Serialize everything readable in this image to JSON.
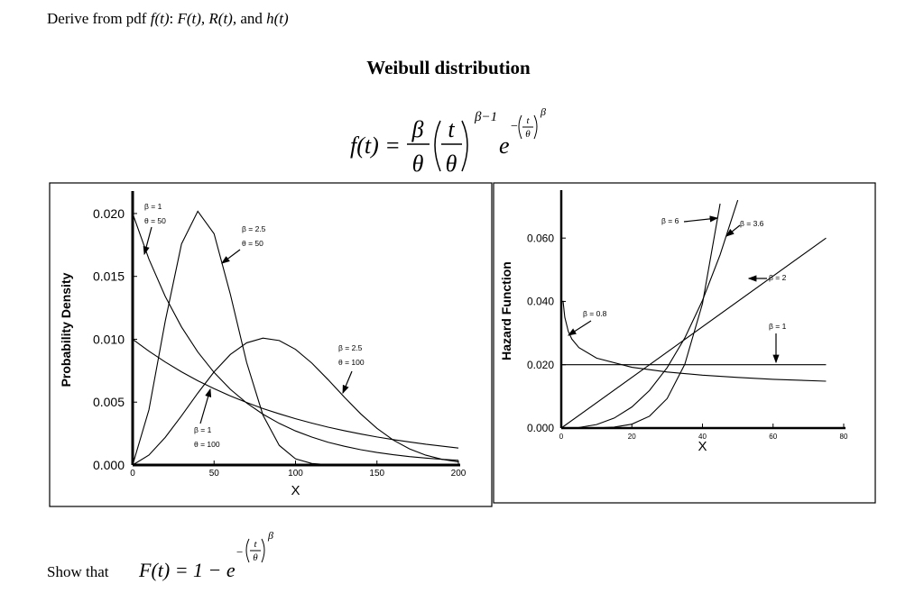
{
  "header": {
    "parts": [
      "Derive from pdf ",
      "f(t)",
      ": ",
      "F(t), R(t),",
      " and ",
      "h(t)"
    ]
  },
  "title": "Weibull distribution",
  "formula": {
    "parts": [
      "f(t) =",
      "β",
      "θ",
      "t",
      "θ",
      "β−1",
      "e",
      "−",
      "t",
      "θ",
      "β"
    ]
  },
  "chart_data": [
    {
      "type": "line",
      "xlabel": "X",
      "ylabel": "Probability Density",
      "xlim": [
        0,
        200
      ],
      "ylim": [
        0,
        0.0215
      ],
      "xticks": [
        0,
        50,
        100,
        150,
        200
      ],
      "yticks": [
        {
          "value": 0,
          "label": "0.000"
        },
        {
          "value": 0.005,
          "label": "0.005"
        },
        {
          "value": 0.01,
          "label": "0.010"
        },
        {
          "value": 0.015,
          "label": "0.015"
        },
        {
          "value": 0.02,
          "label": "0.020"
        }
      ],
      "x": [
        0,
        10,
        20,
        30,
        40,
        50,
        60,
        70,
        80,
        90,
        100,
        110,
        120,
        130,
        140,
        150,
        160,
        170,
        180,
        190,
        200
      ],
      "series": [
        {
          "labels": [
            "β = 1",
            "θ = 50"
          ],
          "color": "#000000",
          "values": [
            0.02,
            0.01637,
            0.01341,
            0.01098,
            0.00899,
            0.00736,
            0.00602,
            0.00493,
            0.00404,
            0.00331,
            0.00271,
            0.00222,
            0.00181,
            0.00149,
            0.00122,
            0.001,
            0.00082,
            0.00067,
            0.00055,
            0.00045,
            0.00037
          ]
        },
        {
          "labels": [
            "β = 2.5",
            "θ = 50"
          ],
          "color": "#000000",
          "values": [
            0,
            0.00439,
            0.01143,
            0.01758,
            0.02018,
            0.01839,
            0.01357,
            0.00815,
            0.00397,
            0.00156,
            0.00049,
            0.00012,
            2e-05,
            0,
            0,
            0,
            0,
            0,
            0,
            0,
            0
          ]
        },
        {
          "labels": [
            "β = 1",
            "θ = 100"
          ],
          "color": "#000000",
          "values": [
            0.01,
            0.00905,
            0.00819,
            0.00741,
            0.0067,
            0.00607,
            0.00549,
            0.00497,
            0.00449,
            0.00407,
            0.00368,
            0.00333,
            0.00301,
            0.00273,
            0.00247,
            0.00223,
            0.00202,
            0.00183,
            0.00165,
            0.0015,
            0.00135
          ]
        },
        {
          "labels": [
            "β = 2.5",
            "θ = 100"
          ],
          "color": "#000000",
          "values": [
            0,
            0.000788,
            0.002196,
            0.00391,
            0.005716,
            0.007407,
            0.008792,
            0.009717,
            0.010092,
            0.009899,
            0.009197,
            0.008108,
            0.006786,
            0.005394,
            0.004073,
            0.00292,
            0.001985,
            0.00128,
            0.000782,
            0.000452,
            0.000247
          ]
        }
      ]
    },
    {
      "type": "line",
      "xlabel": "X",
      "ylabel": "Hazard Function",
      "xlim": [
        0,
        80
      ],
      "ylim": [
        0,
        0.074
      ],
      "xticks": [
        0,
        20,
        40,
        60,
        80
      ],
      "yticks": [
        {
          "value": 0,
          "label": "0.000"
        },
        {
          "value": 0.02,
          "label": "0.020"
        },
        {
          "value": 0.04,
          "label": "0.040"
        },
        {
          "value": 0.06,
          "label": "0.060"
        }
      ],
      "series": [
        {
          "labels": [
            "β = 0.8"
          ],
          "color": "#000000",
          "x": [
            0.5,
            1,
            2,
            3,
            5,
            10,
            20,
            30,
            40,
            50,
            60,
            75
          ],
          "values": [
            0.0402,
            0.035,
            0.0305,
            0.0281,
            0.0254,
            0.0221,
            0.0192,
            0.0177,
            0.0167,
            0.016,
            0.0154,
            0.0148
          ]
        },
        {
          "labels": [
            "β = 1"
          ],
          "color": "#000000",
          "x": [
            0,
            75
          ],
          "values": [
            0.02,
            0.02
          ]
        },
        {
          "labels": [
            "β = 2"
          ],
          "color": "#000000",
          "x": [
            0,
            75
          ],
          "values": [
            0,
            0.06
          ]
        },
        {
          "labels": [
            "β = 3.6"
          ],
          "color": "#000000",
          "x": [
            0,
            5,
            10,
            15,
            20,
            25,
            30,
            35,
            40,
            45,
            50
          ],
          "values": [
            0,
            0.00018,
            0.0011,
            0.00315,
            0.00665,
            0.01188,
            0.01908,
            0.02848,
            0.04031,
            0.05475,
            0.072
          ]
        },
        {
          "labels": [
            "β = 6"
          ],
          "color": "#000000",
          "x": [
            0,
            5,
            10,
            15,
            20,
            25,
            30,
            35,
            40,
            45
          ],
          "values": [
            0,
            1.2e-06,
            3.84e-05,
            0.000292,
            0.00123,
            0.00375,
            0.00933,
            0.02017,
            0.03932,
            0.07086
          ]
        }
      ]
    }
  ],
  "footer": {
    "parts": [
      "Show that ",
      "F(t) = 1 − e",
      "−",
      "t",
      "θ",
      "β"
    ]
  }
}
